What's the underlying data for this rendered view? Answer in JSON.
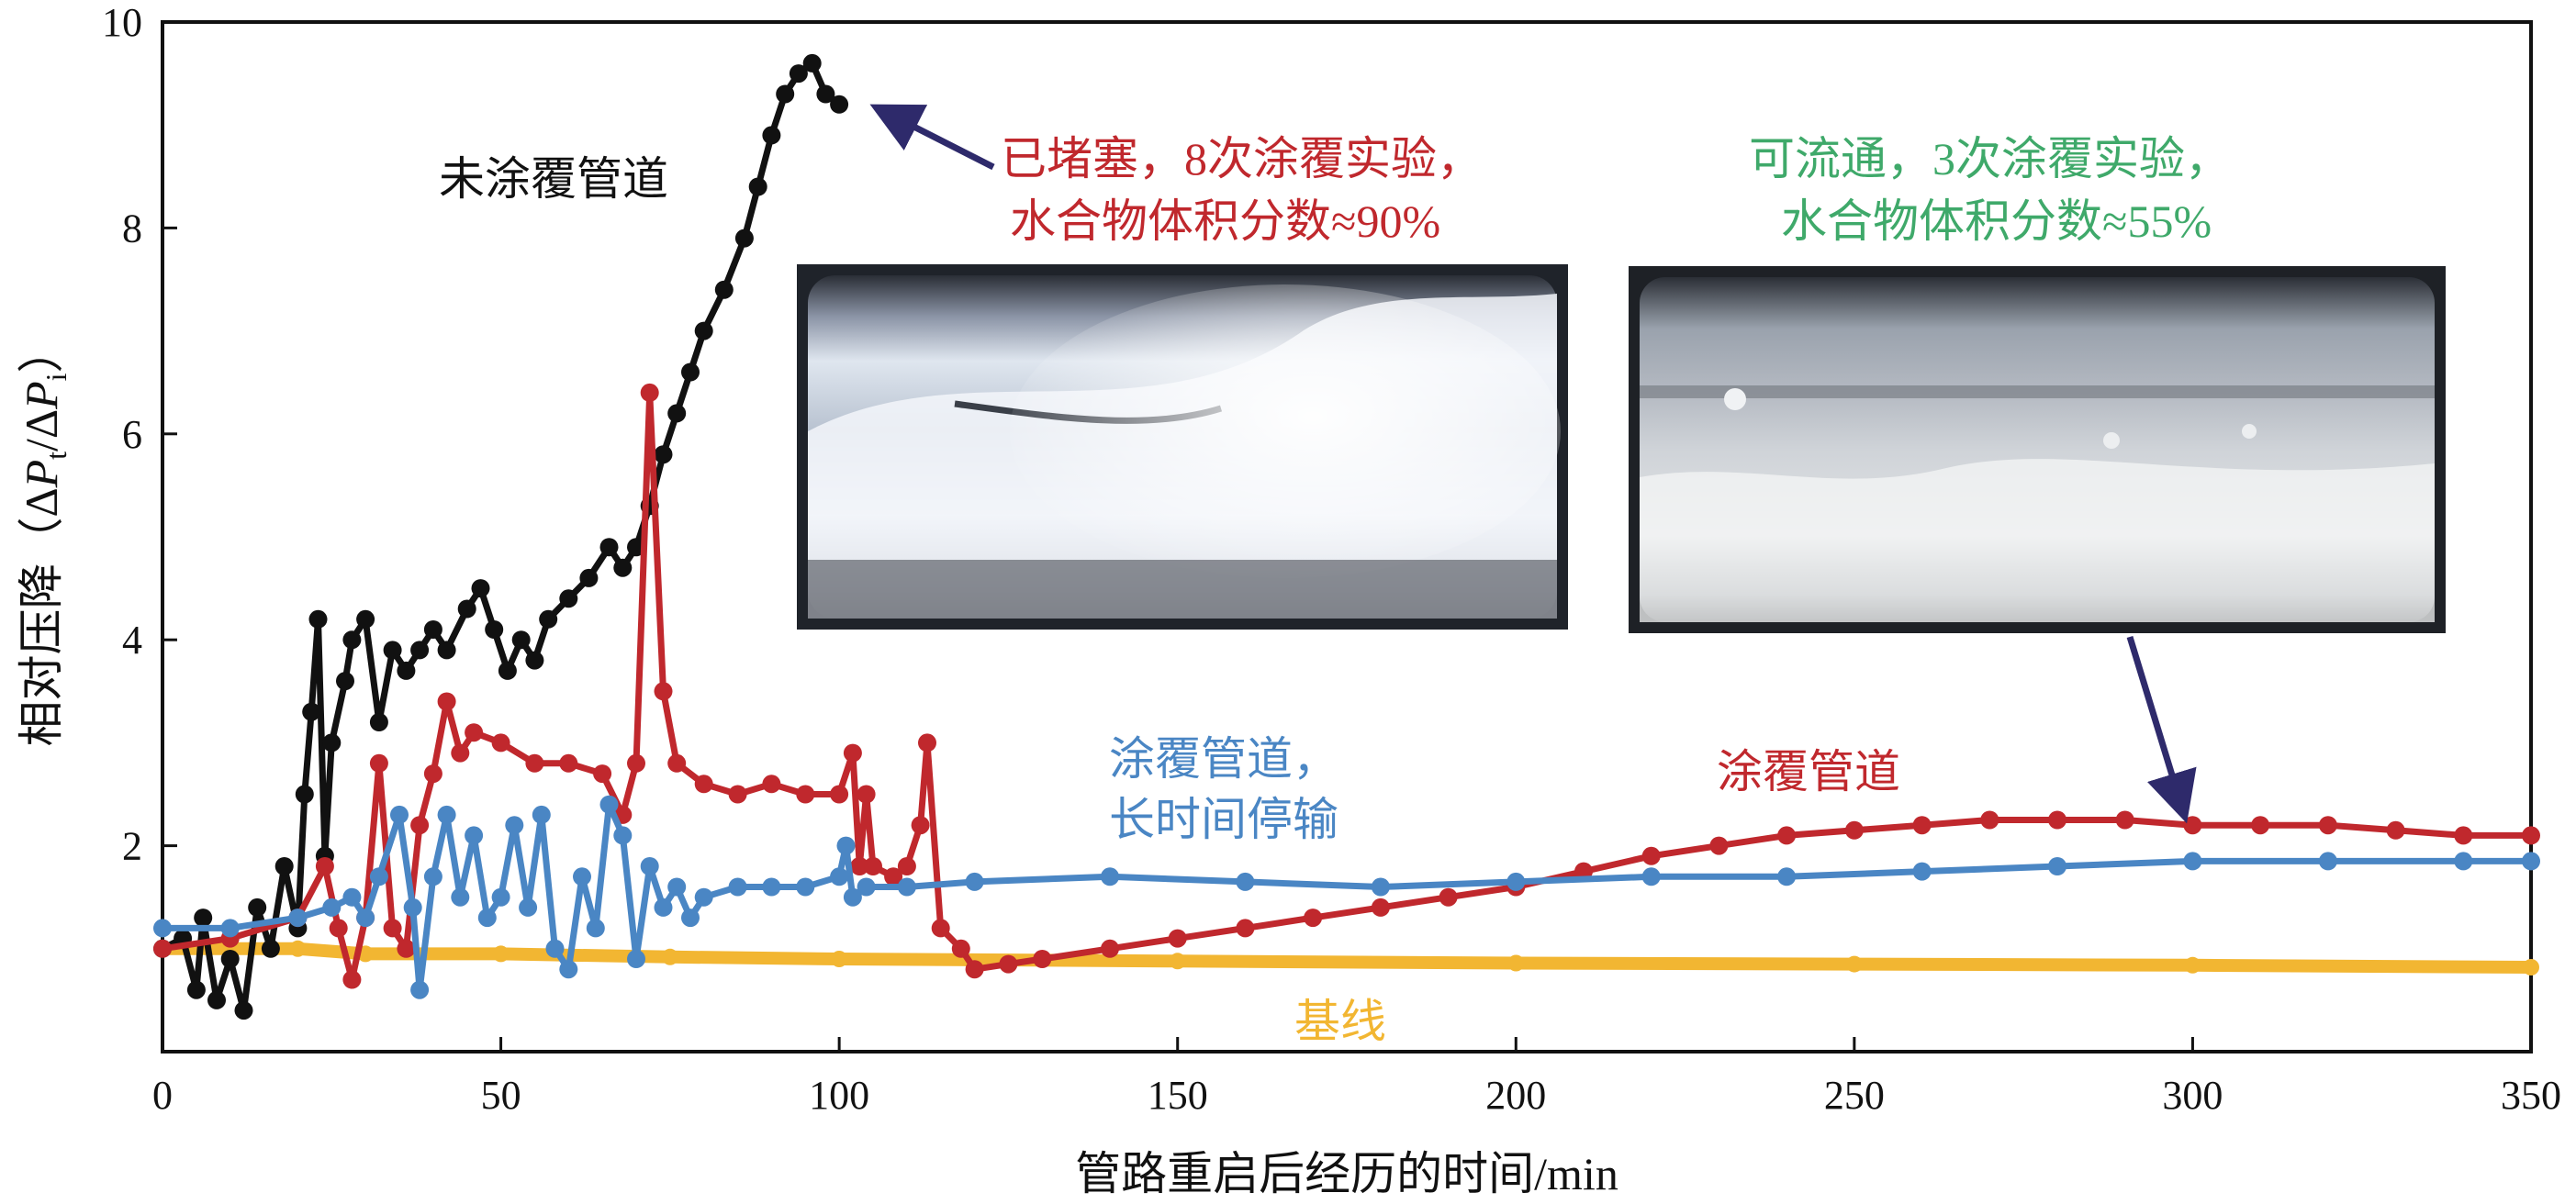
{
  "chart_data": {
    "type": "scatter",
    "xlabel": "管路重启后经历的时间/min",
    "ylabel": {
      "prefix": "相对压降（",
      "delta1": "Δ",
      "p1": "P",
      "sub1": "t",
      "slash": "/Δ",
      "p2": "P",
      "sub2": "i",
      "suffix": "）"
    },
    "xlim": [
      0,
      350
    ],
    "ylim": [
      0,
      10
    ],
    "x_ticks": [
      "0",
      "50",
      "100",
      "150",
      "200",
      "250",
      "300",
      "350"
    ],
    "y_ticks": [
      "2",
      "4",
      "6",
      "8",
      "10"
    ],
    "grid": false,
    "series": [
      {
        "name": "基线",
        "color": "#f2b632",
        "x": [
          0,
          10,
          20,
          30,
          50,
          75,
          100,
          150,
          200,
          250,
          300,
          350
        ],
        "y": [
          1.0,
          1.0,
          1.0,
          0.95,
          0.95,
          0.92,
          0.9,
          0.88,
          0.86,
          0.85,
          0.84,
          0.82
        ]
      },
      {
        "name": "未涂覆管道",
        "color": "#111111",
        "x": [
          0,
          3,
          5,
          6,
          8,
          10,
          12,
          14,
          16,
          18,
          20,
          21,
          22,
          23,
          24,
          25,
          27,
          28,
          30,
          32,
          34,
          36,
          38,
          40,
          42,
          45,
          47,
          49,
          51,
          53,
          55,
          57,
          60,
          63,
          66,
          68,
          70,
          72,
          74,
          76,
          78,
          80,
          83,
          86,
          88,
          90,
          92,
          94,
          96,
          98,
          100
        ],
        "y": [
          1.0,
          1.1,
          0.6,
          1.3,
          0.5,
          0.9,
          0.4,
          1.4,
          1.0,
          1.8,
          1.2,
          2.5,
          3.3,
          4.2,
          1.9,
          3.0,
          3.6,
          4.0,
          4.2,
          3.2,
          3.9,
          3.7,
          3.9,
          4.1,
          3.9,
          4.3,
          4.5,
          4.1,
          3.7,
          4.0,
          3.8,
          4.2,
          4.4,
          4.6,
          4.9,
          4.7,
          4.9,
          5.3,
          5.8,
          6.2,
          6.6,
          7.0,
          7.4,
          7.9,
          8.4,
          8.9,
          9.3,
          9.5,
          9.6,
          9.3,
          9.2
        ]
      },
      {
        "name": "涂覆管道（已堵塞）",
        "color": "#c0282d",
        "x": [
          0,
          10,
          20,
          24,
          26,
          28,
          30,
          32,
          34,
          36,
          38,
          40,
          42,
          44,
          46,
          50,
          55,
          60,
          65,
          68,
          70,
          72,
          74,
          76,
          80,
          85,
          90,
          95,
          100,
          102,
          103,
          104,
          105,
          108,
          110,
          112,
          113,
          115,
          118,
          120,
          125,
          130,
          140,
          150,
          160,
          170,
          180,
          190,
          200,
          210,
          220,
          230,
          240,
          250,
          260,
          270,
          280,
          290,
          300,
          310,
          320,
          330,
          340,
          350
        ],
        "y": [
          1.0,
          1.1,
          1.3,
          1.8,
          1.2,
          0.7,
          1.3,
          2.8,
          1.2,
          1.0,
          2.2,
          2.7,
          3.4,
          2.9,
          3.1,
          3.0,
          2.8,
          2.8,
          2.7,
          2.3,
          2.8,
          6.4,
          3.5,
          2.8,
          2.6,
          2.5,
          2.6,
          2.5,
          2.5,
          2.9,
          1.8,
          2.5,
          1.8,
          1.7,
          1.8,
          2.2,
          3.0,
          1.2,
          1.0,
          0.8,
          0.85,
          0.9,
          1.0,
          1.1,
          1.2,
          1.3,
          1.4,
          1.5,
          1.6,
          1.75,
          1.9,
          2.0,
          2.1,
          2.15,
          2.2,
          2.25,
          2.25,
          2.25,
          2.2,
          2.2,
          2.2,
          2.15,
          2.1,
          2.1
        ]
      },
      {
        "name": "涂覆管道，长时间停输",
        "color": "#4a86c4",
        "x": [
          0,
          10,
          20,
          25,
          28,
          30,
          32,
          35,
          37,
          38,
          40,
          42,
          44,
          46,
          48,
          50,
          52,
          54,
          56,
          58,
          60,
          62,
          64,
          66,
          68,
          70,
          72,
          74,
          76,
          78,
          80,
          85,
          90,
          95,
          100,
          101,
          102,
          104,
          110,
          120,
          140,
          160,
          180,
          200,
          220,
          240,
          260,
          280,
          300,
          320,
          340,
          350
        ],
        "y": [
          1.2,
          1.2,
          1.3,
          1.4,
          1.5,
          1.3,
          1.7,
          2.3,
          1.4,
          0.6,
          1.7,
          2.3,
          1.5,
          2.1,
          1.3,
          1.5,
          2.2,
          1.4,
          2.3,
          1.0,
          0.8,
          1.7,
          1.2,
          2.4,
          2.1,
          0.9,
          1.8,
          1.4,
          1.6,
          1.3,
          1.5,
          1.6,
          1.6,
          1.6,
          1.7,
          2.0,
          1.5,
          1.6,
          1.6,
          1.65,
          1.7,
          1.65,
          1.6,
          1.65,
          1.7,
          1.7,
          1.75,
          1.8,
          1.85,
          1.85,
          1.85,
          1.85
        ]
      }
    ],
    "annotations": [
      {
        "id": "uncoated",
        "text": "未涂覆管道",
        "color": "#111111"
      },
      {
        "id": "blocked",
        "lines": [
          "已堵塞，8次涂覆实验，",
          "水合物体积分数≈90%"
        ],
        "color": "#c0282d"
      },
      {
        "id": "flowable",
        "lines": [
          "可流通，3次涂覆实验，",
          "水合物体积分数≈55%"
        ],
        "color": "#3fa96a"
      },
      {
        "id": "coated-shutdown",
        "lines": [
          "涂覆管道，",
          "长时间停输"
        ],
        "color": "#4a86c4"
      },
      {
        "id": "coated",
        "text": "涂覆管道",
        "color": "#c0282d"
      },
      {
        "id": "baseline",
        "text": "基线",
        "color": "#f2b632"
      }
    ],
    "arrow_color": "#2e2a6b"
  }
}
